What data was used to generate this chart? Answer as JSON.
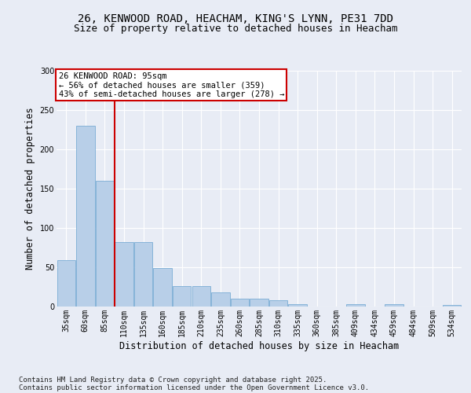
{
  "title": "26, KENWOOD ROAD, HEACHAM, KING'S LYNN, PE31 7DD",
  "subtitle": "Size of property relative to detached houses in Heacham",
  "xlabel": "Distribution of detached houses by size in Heacham",
  "ylabel": "Number of detached properties",
  "categories": [
    "35sqm",
    "60sqm",
    "85sqm",
    "110sqm",
    "135sqm",
    "160sqm",
    "185sqm",
    "210sqm",
    "235sqm",
    "260sqm",
    "285sqm",
    "310sqm",
    "335sqm",
    "360sqm",
    "385sqm",
    "409sqm",
    "434sqm",
    "459sqm",
    "484sqm",
    "509sqm",
    "534sqm"
  ],
  "values": [
    59,
    230,
    160,
    82,
    82,
    49,
    26,
    26,
    18,
    10,
    10,
    8,
    3,
    0,
    0,
    3,
    0,
    3,
    0,
    0,
    2
  ],
  "bar_color": "#b8cfe8",
  "bar_edge_color": "#7aadd4",
  "vline_color": "#cc0000",
  "annotation_text": "26 KENWOOD ROAD: 95sqm\n← 56% of detached houses are smaller (359)\n43% of semi-detached houses are larger (278) →",
  "annotation_box_color": "#ffffff",
  "annotation_box_edge": "#cc0000",
  "ylim": [
    0,
    300
  ],
  "yticks": [
    0,
    50,
    100,
    150,
    200,
    250,
    300
  ],
  "footer_line1": "Contains HM Land Registry data © Crown copyright and database right 2025.",
  "footer_line2": "Contains public sector information licensed under the Open Government Licence v3.0.",
  "bg_color": "#e8ecf5",
  "title_fontsize": 10,
  "subtitle_fontsize": 9,
  "axis_label_fontsize": 8.5,
  "tick_fontsize": 7,
  "annot_fontsize": 7.5,
  "footer_fontsize": 6.5
}
